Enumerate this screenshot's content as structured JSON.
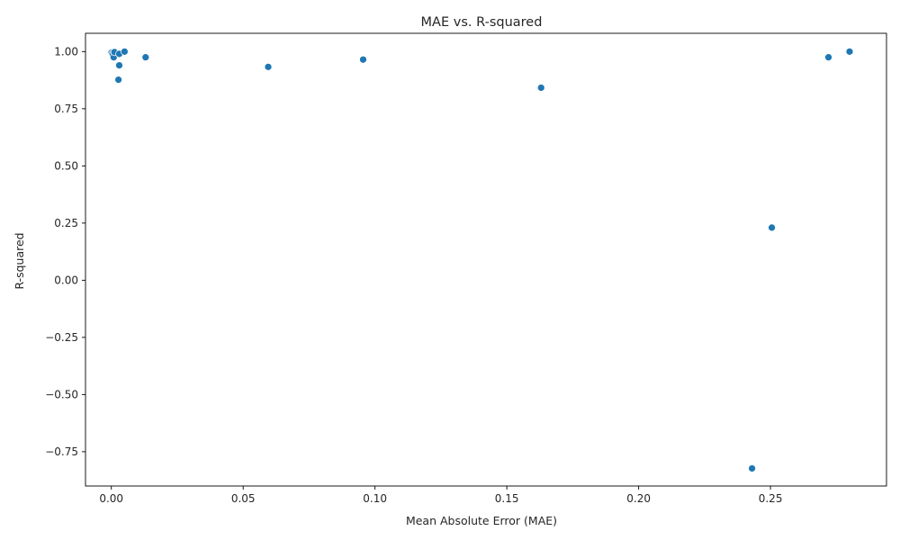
{
  "chart_data": {
    "type": "scatter",
    "title": "MAE vs. R-squared",
    "xlabel": "Mean Absolute Error (MAE)",
    "ylabel": "R-squared",
    "xlim": [
      -0.0098,
      0.294
    ],
    "ylim": [
      -0.9,
      1.08
    ],
    "xticks": [
      0.0,
      0.05,
      0.1,
      0.15,
      0.2,
      0.25
    ],
    "xtick_labels": [
      "0.00",
      "0.05",
      "0.10",
      "0.15",
      "0.20",
      "0.25"
    ],
    "yticks": [
      -0.75,
      -0.5,
      -0.25,
      0.0,
      0.25,
      0.5,
      0.75,
      1.0
    ],
    "ytick_labels": [
      "−0.75",
      "−0.50",
      "−0.25",
      "0.00",
      "0.25",
      "0.50",
      "0.75",
      "1.00"
    ],
    "grid": false,
    "marker_color": "#1f77b4",
    "marker_edge_color": "#ffffff",
    "points": [
      {
        "x": 0.0,
        "y": 0.995
      },
      {
        "x": 0.0003,
        "y": 0.99
      },
      {
        "x": 0.0006,
        "y": 0.985
      },
      {
        "x": 0.0009,
        "y": 0.975
      },
      {
        "x": 0.0012,
        "y": 0.998
      },
      {
        "x": 0.003,
        "y": 0.99
      },
      {
        "x": 0.003,
        "y": 0.94
      },
      {
        "x": 0.0027,
        "y": 0.877
      },
      {
        "x": 0.005,
        "y": 1.0
      },
      {
        "x": 0.013,
        "y": 0.975
      },
      {
        "x": 0.0595,
        "y": 0.933
      },
      {
        "x": 0.0955,
        "y": 0.965
      },
      {
        "x": 0.163,
        "y": 0.842
      },
      {
        "x": 0.243,
        "y": -0.823
      },
      {
        "x": 0.2505,
        "y": 0.23
      },
      {
        "x": 0.272,
        "y": 0.975
      },
      {
        "x": 0.28,
        "y": 1.0
      }
    ]
  }
}
